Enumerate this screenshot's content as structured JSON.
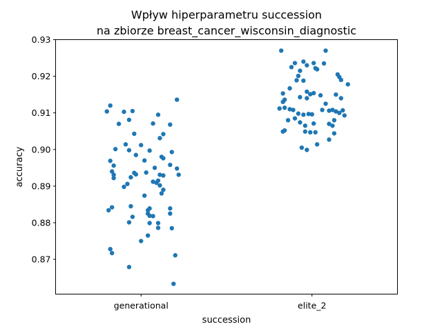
{
  "chart_data": {
    "type": "scatter",
    "title_line1": "Wpływ hiperparametru succession",
    "title_line2": "na zbiorze breast_cancer_wisconsin_diagnostic",
    "xlabel": "succession",
    "ylabel": "accuracy",
    "categories": [
      "generational",
      "elite_2"
    ],
    "ylim": [
      0.8605,
      0.93
    ],
    "yticks": [
      "0.87",
      "0.88",
      "0.89",
      "0.90",
      "0.91",
      "0.92",
      "0.93"
    ],
    "grid": false,
    "marker_color": "#1f77b4",
    "series": [
      {
        "category": "generational",
        "points": [
          {
            "j": 0.21,
            "y": 0.9136
          },
          {
            "j": -0.18,
            "y": 0.912
          },
          {
            "j": -0.2,
            "y": 0.9104
          },
          {
            "j": -0.05,
            "y": 0.9105
          },
          {
            "j": -0.1,
            "y": 0.9103
          },
          {
            "j": 0.1,
            "y": 0.9095
          },
          {
            "j": -0.07,
            "y": 0.9081
          },
          {
            "j": 0.07,
            "y": 0.9071
          },
          {
            "j": 0.17,
            "y": 0.9068
          },
          {
            "j": -0.13,
            "y": 0.907
          },
          {
            "j": -0.04,
            "y": 0.9043
          },
          {
            "j": 0.13,
            "y": 0.9042
          },
          {
            "j": 0.11,
            "y": 0.9031
          },
          {
            "j": -0.09,
            "y": 0.9014
          },
          {
            "j": 0.0,
            "y": 0.9012
          },
          {
            "j": -0.15,
            "y": 0.9001
          },
          {
            "j": -0.07,
            "y": 0.8998
          },
          {
            "j": 0.05,
            "y": 0.8997
          },
          {
            "j": 0.18,
            "y": 0.8993
          },
          {
            "j": -0.03,
            "y": 0.8985
          },
          {
            "j": 0.12,
            "y": 0.898
          },
          {
            "j": 0.13,
            "y": 0.8976
          },
          {
            "j": 0.02,
            "y": 0.897
          },
          {
            "j": -0.18,
            "y": 0.8969
          },
          {
            "j": 0.17,
            "y": 0.8958
          },
          {
            "j": -0.16,
            "y": 0.8956
          },
          {
            "j": 0.21,
            "y": 0.8948
          },
          {
            "j": 0.08,
            "y": 0.895
          },
          {
            "j": -0.17,
            "y": 0.894
          },
          {
            "j": 0.03,
            "y": 0.8937
          },
          {
            "j": -0.04,
            "y": 0.8936
          },
          {
            "j": -0.03,
            "y": 0.8932
          },
          {
            "j": -0.16,
            "y": 0.8931
          },
          {
            "j": 0.11,
            "y": 0.8931
          },
          {
            "j": 0.22,
            "y": 0.8931
          },
          {
            "j": 0.13,
            "y": 0.8929
          },
          {
            "j": -0.06,
            "y": 0.8924
          },
          {
            "j": -0.16,
            "y": 0.8922
          },
          {
            "j": 0.1,
            "y": 0.8915
          },
          {
            "j": 0.07,
            "y": 0.8912
          },
          {
            "j": 0.09,
            "y": 0.8909
          },
          {
            "j": -0.08,
            "y": 0.8906
          },
          {
            "j": 0.11,
            "y": 0.8902
          },
          {
            "j": -0.1,
            "y": 0.8898
          },
          {
            "j": 0.13,
            "y": 0.889
          },
          {
            "j": 0.12,
            "y": 0.888
          },
          {
            "j": 0.02,
            "y": 0.8874
          },
          {
            "j": -0.06,
            "y": 0.8845
          },
          {
            "j": -0.17,
            "y": 0.8842
          },
          {
            "j": 0.05,
            "y": 0.8839
          },
          {
            "j": 0.17,
            "y": 0.8839
          },
          {
            "j": -0.19,
            "y": 0.8834
          },
          {
            "j": 0.04,
            "y": 0.8834
          },
          {
            "j": 0.04,
            "y": 0.8825
          },
          {
            "j": 0.17,
            "y": 0.8825
          },
          {
            "j": 0.05,
            "y": 0.8819
          },
          {
            "j": -0.05,
            "y": 0.8816
          },
          {
            "j": 0.07,
            "y": 0.8818
          },
          {
            "j": -0.07,
            "y": 0.8801
          },
          {
            "j": 0.05,
            "y": 0.8799
          },
          {
            "j": 0.1,
            "y": 0.8799
          },
          {
            "j": 0.1,
            "y": 0.8786
          },
          {
            "j": 0.18,
            "y": 0.8785
          },
          {
            "j": 0.04,
            "y": 0.8765
          },
          {
            "j": 0.0,
            "y": 0.875
          },
          {
            "j": -0.18,
            "y": 0.8728
          },
          {
            "j": -0.17,
            "y": 0.8717
          },
          {
            "j": 0.2,
            "y": 0.8711
          },
          {
            "j": -0.07,
            "y": 0.8679
          },
          {
            "j": 0.19,
            "y": 0.8633
          }
        ]
      },
      {
        "category": "elite_2",
        "points": [
          {
            "j": -0.18,
            "y": 0.927
          },
          {
            "j": 0.08,
            "y": 0.927
          },
          {
            "j": -0.05,
            "y": 0.924
          },
          {
            "j": -0.1,
            "y": 0.9236
          },
          {
            "j": 0.01,
            "y": 0.9236
          },
          {
            "j": 0.07,
            "y": 0.9235
          },
          {
            "j": -0.03,
            "y": 0.923
          },
          {
            "j": -0.12,
            "y": 0.9225
          },
          {
            "j": 0.02,
            "y": 0.9222
          },
          {
            "j": 0.03,
            "y": 0.9219
          },
          {
            "j": -0.07,
            "y": 0.9215
          },
          {
            "j": 0.15,
            "y": 0.9205
          },
          {
            "j": -0.08,
            "y": 0.9201
          },
          {
            "j": 0.16,
            "y": 0.9198
          },
          {
            "j": 0.17,
            "y": 0.919
          },
          {
            "j": -0.09,
            "y": 0.9189
          },
          {
            "j": -0.05,
            "y": 0.9188
          },
          {
            "j": 0.21,
            "y": 0.9178
          },
          {
            "j": -0.13,
            "y": 0.9167
          },
          {
            "j": -0.03,
            "y": 0.9158
          },
          {
            "j": 0.01,
            "y": 0.9154
          },
          {
            "j": -0.17,
            "y": 0.9153
          },
          {
            "j": -0.01,
            "y": 0.9151
          },
          {
            "j": 0.14,
            "y": 0.915
          },
          {
            "j": 0.05,
            "y": 0.9148
          },
          {
            "j": -0.07,
            "y": 0.9143
          },
          {
            "j": -0.03,
            "y": 0.914
          },
          {
            "j": -0.16,
            "y": 0.9136
          },
          {
            "j": 0.17,
            "y": 0.914
          },
          {
            "j": -0.17,
            "y": 0.913
          },
          {
            "j": 0.08,
            "y": 0.9125
          },
          {
            "j": -0.16,
            "y": 0.9114
          },
          {
            "j": -0.19,
            "y": 0.9112
          },
          {
            "j": -0.13,
            "y": 0.911
          },
          {
            "j": -0.11,
            "y": 0.9108
          },
          {
            "j": 0.06,
            "y": 0.9108
          },
          {
            "j": 0.1,
            "y": 0.9106
          },
          {
            "j": 0.12,
            "y": 0.9108
          },
          {
            "j": 0.18,
            "y": 0.9107
          },
          {
            "j": 0.14,
            "y": 0.9104
          },
          {
            "j": 0.16,
            "y": 0.91
          },
          {
            "j": -0.08,
            "y": 0.9098
          },
          {
            "j": -0.02,
            "y": 0.9097
          },
          {
            "j": 0.0,
            "y": 0.9096
          },
          {
            "j": -0.05,
            "y": 0.9095
          },
          {
            "j": 0.19,
            "y": 0.9093
          },
          {
            "j": -0.1,
            "y": 0.9085
          },
          {
            "j": -0.14,
            "y": 0.908
          },
          {
            "j": 0.13,
            "y": 0.908
          },
          {
            "j": -0.07,
            "y": 0.9074
          },
          {
            "j": 0.01,
            "y": 0.9071
          },
          {
            "j": 0.1,
            "y": 0.907
          },
          {
            "j": 0.12,
            "y": 0.9065
          },
          {
            "j": -0.04,
            "y": 0.9065
          },
          {
            "j": -0.16,
            "y": 0.9052
          },
          {
            "j": -0.17,
            "y": 0.9049
          },
          {
            "j": -0.04,
            "y": 0.9049
          },
          {
            "j": -0.01,
            "y": 0.9047
          },
          {
            "j": 0.02,
            "y": 0.9047
          },
          {
            "j": 0.13,
            "y": 0.9044
          },
          {
            "j": 0.1,
            "y": 0.9027
          },
          {
            "j": 0.03,
            "y": 0.9014
          },
          {
            "j": -0.06,
            "y": 0.9005
          },
          {
            "j": -0.03,
            "y": 0.8999
          }
        ]
      }
    ]
  }
}
